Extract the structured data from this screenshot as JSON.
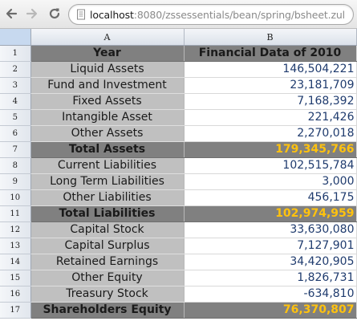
{
  "browser": {
    "url_protocol": "",
    "url_host": "localhost",
    "url_rest": ":8080/zssessentials/bean/spring/bsheet.zul",
    "back_icon": "back-arrow-icon",
    "forward_icon": "forward-arrow-icon",
    "reload_icon": "reload-icon",
    "page_icon": "page-icon"
  },
  "spreadsheet": {
    "column_headers": [
      "A",
      "B"
    ],
    "rows": [
      {
        "row": "1",
        "label": "Year",
        "value": "Financial Data of 2010",
        "style": "header"
      },
      {
        "row": "2",
        "label": "Liquid Assets",
        "value": "146,504,221",
        "style": "normal"
      },
      {
        "row": "3",
        "label": "Fund and Investment",
        "value": "23,181,709",
        "style": "normal"
      },
      {
        "row": "4",
        "label": "Fixed Assets",
        "value": "7,168,392",
        "style": "normal"
      },
      {
        "row": "5",
        "label": "Intangible Asset",
        "value": "221,426",
        "style": "normal"
      },
      {
        "row": "6",
        "label": "Other Assets",
        "value": "2,270,018",
        "style": "normal"
      },
      {
        "row": "7",
        "label": "Total Assets",
        "value": "179,345,766",
        "style": "total"
      },
      {
        "row": "8",
        "label": "Current Liabilities",
        "value": "102,515,784",
        "style": "normal"
      },
      {
        "row": "9",
        "label": "Long Term Liabilities",
        "value": "3,000",
        "style": "normal"
      },
      {
        "row": "10",
        "label": "Other Liabilities",
        "value": "456,175",
        "style": "normal"
      },
      {
        "row": "11",
        "label": "Total Liabilities",
        "value": "102,974,959",
        "style": "total"
      },
      {
        "row": "12",
        "label": "Capital Stock",
        "value": "33,630,080",
        "style": "normal"
      },
      {
        "row": "13",
        "label": "Capital Surplus",
        "value": "7,127,901",
        "style": "normal"
      },
      {
        "row": "14",
        "label": "Retained Earnings",
        "value": "34,420,905",
        "style": "normal"
      },
      {
        "row": "15",
        "label": "Other Equity",
        "value": "1,826,731",
        "style": "normal"
      },
      {
        "row": "16",
        "label": "Treasury Stock",
        "value": "-634,810",
        "style": "normal"
      },
      {
        "row": "17",
        "label": "Shareholders Equity",
        "value": "76,370,807",
        "style": "total"
      }
    ]
  },
  "colors": {
    "label_cell_bg": "#c0c0c0",
    "header_total_bg": "#808080",
    "value_text": "#1f3b6e",
    "total_value_text": "#ffc20e"
  }
}
